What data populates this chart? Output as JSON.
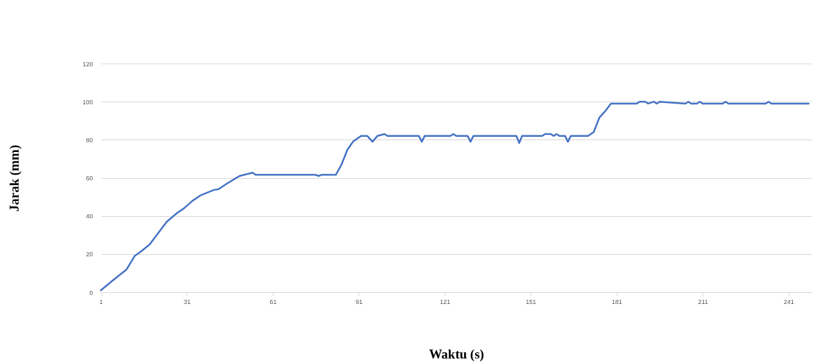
{
  "chart_data": {
    "type": "line",
    "xlabel": "Waktu (s)",
    "ylabel": "Jarak (mm)",
    "series": [
      {
        "color": "#4472c4",
        "x": [
          1,
          5,
          10,
          12.8,
          14.7,
          18,
          21,
          24,
          27.7,
          30,
          33,
          36,
          40.5,
          42,
          45,
          49.4,
          52,
          54,
          55,
          65,
          76,
          77,
          78,
          83,
          85,
          87,
          89,
          91.8,
          94,
          95.8,
          97.5,
          100,
          101,
          112,
          113,
          114,
          123,
          124,
          125,
          129,
          130,
          131,
          146,
          147,
          148,
          155,
          156,
          158,
          159,
          160,
          161,
          163,
          164,
          165,
          166,
          171,
          173,
          175,
          177,
          179,
          188,
          189,
          191,
          192,
          194,
          195,
          196,
          205,
          206,
          207,
          209,
          210,
          211,
          218,
          219,
          220,
          233,
          234,
          235,
          248
        ],
        "values": [
          1,
          6,
          12,
          19,
          21,
          25,
          31,
          37,
          41.7,
          44,
          48,
          51,
          53.7,
          54,
          57,
          61,
          62,
          62.7,
          61.6,
          61.6,
          61.6,
          61,
          61.6,
          61.6,
          67,
          74.7,
          79,
          82,
          82,
          79,
          82,
          83,
          82,
          82,
          79,
          82,
          82,
          83,
          82,
          82,
          79,
          82,
          82,
          78.3,
          82,
          82,
          83,
          83,
          82,
          83,
          82,
          82,
          79,
          82,
          82,
          82,
          84,
          91.7,
          95,
          99,
          99,
          100,
          100,
          99,
          100,
          99,
          100,
          99,
          100,
          99,
          99,
          100,
          99,
          99,
          100,
          99,
          99,
          100,
          99,
          99
        ]
      }
    ],
    "xlim": [
      1,
      249
    ],
    "xticks": [
      1,
      31,
      61,
      91,
      121,
      151,
      181,
      211,
      241
    ],
    "ylim": [
      0,
      120
    ],
    "yticks": [
      0,
      20,
      40,
      60,
      80,
      100,
      120
    ],
    "grid": "y",
    "marker": "none",
    "line_style": "solid"
  }
}
